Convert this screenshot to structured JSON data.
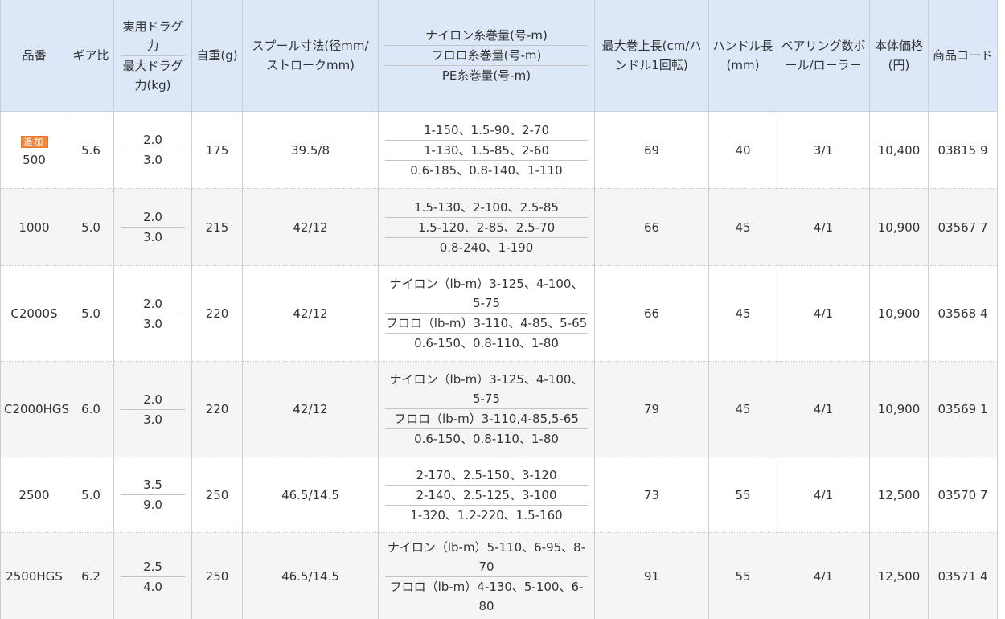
{
  "header": {
    "columns": [
      "品番",
      "ギア比",
      [
        "実用ドラグ力",
        "最大ドラグ力(kg)"
      ],
      "自重(g)",
      "スプール寸法(径mm/ストロークmm)",
      [
        "ナイロン糸巻量(号-m)",
        "フロロ糸巻量(号-m)",
        "PE糸巻量(号-m)"
      ],
      "最大巻上長(cm/ハンドル1回転)",
      "ハンドル長(mm)",
      "ベアリング数ボール/ローラー",
      "本体価格(円)",
      "商品コード"
    ]
  },
  "table": {
    "rows": [
      {
        "badge": "追加",
        "model": "500",
        "gear": "5.6",
        "drag": [
          "2.0",
          "3.0"
        ],
        "weight": "175",
        "spool": "39.5/8",
        "line": [
          "1-150、1.5-90、2-70",
          "1-130、1.5-85、2-60",
          "0.6-185、0.8-140、1-110"
        ],
        "retrieve": "69",
        "handle": "40",
        "bearing": "3/1",
        "price": "10,400",
        "code": "03815 9"
      },
      {
        "model": "1000",
        "gear": "5.0",
        "drag": [
          "2.0",
          "3.0"
        ],
        "weight": "215",
        "spool": "42/12",
        "line": [
          "1.5-130、2-100、2.5-85",
          "1.5-120、2-85、2.5-70",
          "0.8-240、1-190"
        ],
        "retrieve": "66",
        "handle": "45",
        "bearing": "4/1",
        "price": "10,900",
        "code": "03567 7"
      },
      {
        "model": "C2000S",
        "gear": "5.0",
        "drag": [
          "2.0",
          "3.0"
        ],
        "weight": "220",
        "spool": "42/12",
        "line": [
          "ナイロン（lb-m）3-125、4-100、5-75",
          "フロロ（lb-m）3-110、4-85、5-65",
          "0.6-150、0.8-110、1-80"
        ],
        "retrieve": "66",
        "handle": "45",
        "bearing": "4/1",
        "price": "10,900",
        "code": "03568 4"
      },
      {
        "model": "C2000HGS",
        "gear": "6.0",
        "drag": [
          "2.0",
          "3.0"
        ],
        "weight": "220",
        "spool": "42/12",
        "line": [
          "ナイロン（lb-m）3-125、4-100、5-75",
          "フロロ（lb-m）3-110,4-85,5-65",
          "0.6-150、0.8-110、1-80"
        ],
        "retrieve": "79",
        "handle": "45",
        "bearing": "4/1",
        "price": "10,900",
        "code": "03569 1"
      },
      {
        "model": "2500",
        "gear": "5.0",
        "drag": [
          "3.5",
          "9.0"
        ],
        "weight": "250",
        "spool": "46.5/14.5",
        "line": [
          "2-170、2.5-150、3-120",
          "2-140、2.5-125、3-100",
          "1-320、1.2-220、1.5-160"
        ],
        "retrieve": "73",
        "handle": "55",
        "bearing": "4/1",
        "price": "12,500",
        "code": "03570 7"
      },
      {
        "model": "2500HGS",
        "gear": "6.2",
        "drag": [
          "2.5",
          "4.0"
        ],
        "weight": "250",
        "spool": "46.5/14.5",
        "line": [
          "ナイロン（lb-m）5-110、6-95、8-70",
          "フロロ（lb-m）4-130、5-100、6-80"
        ],
        "retrieve": "91",
        "handle": "55",
        "bearing": "4/1",
        "price": "12,500",
        "code": "03571 4"
      }
    ]
  }
}
